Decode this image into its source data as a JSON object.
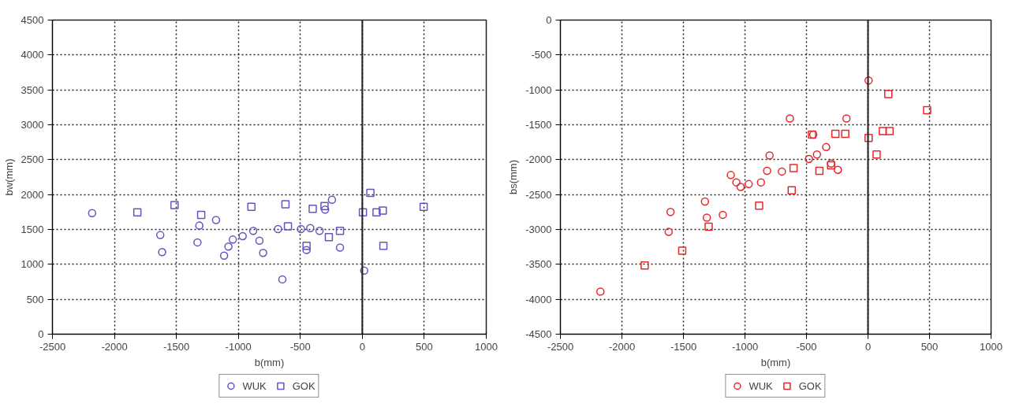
{
  "chart_data": [
    {
      "type": "scatter",
      "xlabel": "b(mm)",
      "ylabel": "bw(mm)",
      "xlim": [
        -2500,
        1000
      ],
      "xticks": [
        -2500,
        -2000,
        -1500,
        -1000,
        -500,
        0,
        500,
        1000
      ],
      "ylim": [
        0,
        4500
      ],
      "yticks": [
        0,
        500,
        1000,
        1500,
        2000,
        2500,
        3000,
        3500,
        4000,
        4500
      ],
      "grid": true,
      "legend": "bottom",
      "ref_lines": [
        {
          "axis": "x",
          "value": 0,
          "line_style": "solid",
          "color": "#222222"
        }
      ],
      "series": [
        {
          "name": "WUK",
          "color": "#6a52c2",
          "marker": "circle",
          "x": [
            -2180,
            -1630,
            -1615,
            -1315,
            -1330,
            -1180,
            -1115,
            -1080,
            -1045,
            -965,
            -880,
            -830,
            -800,
            -680,
            -645,
            -495,
            -420,
            -345,
            -300,
            -245,
            -450,
            -180,
            15
          ],
          "values": [
            1735,
            1420,
            1175,
            1555,
            1315,
            1635,
            1125,
            1255,
            1355,
            1405,
            1480,
            1340,
            1165,
            1505,
            785,
            1505,
            1520,
            1480,
            1785,
            1925,
            1205,
            1240,
            910
          ]
        },
        {
          "name": "GOK",
          "color": "#6a52c2",
          "marker": "square",
          "x": [
            -1815,
            -1515,
            -1300,
            -895,
            -620,
            -600,
            -400,
            -305,
            -270,
            -180,
            -450,
            65,
            5,
            115,
            165,
            170,
            495
          ],
          "values": [
            1745,
            1850,
            1710,
            1825,
            1860,
            1545,
            1795,
            1835,
            1390,
            1480,
            1265,
            2025,
            1745,
            1745,
            1770,
            1265,
            1825
          ]
        }
      ]
    },
    {
      "type": "scatter",
      "xlabel": "b(mm)",
      "ylabel": "bs(mm)",
      "xlim": [
        -2500,
        1000
      ],
      "xticks": [
        -2500,
        -2000,
        -1500,
        -1000,
        -500,
        0,
        500,
        1000
      ],
      "ylim": [
        -4500,
        0
      ],
      "yticks": [
        -4500,
        -4000,
        -3500,
        -3000,
        -2500,
        -2000,
        -1500,
        -1000,
        -500,
        0
      ],
      "grid": true,
      "legend": "bottom",
      "ref_lines": [
        {
          "axis": "x",
          "value": 0,
          "line_style": "solid",
          "color": "#222222"
        }
      ],
      "series": [
        {
          "name": "WUK",
          "color": "#e8262a",
          "marker": "circle",
          "x": [
            -800,
            -820,
            -700,
            -1115,
            -1070,
            -1035,
            -970,
            -870,
            -1325,
            -1605,
            -1310,
            -1180,
            -1620,
            -2175,
            5,
            -635,
            -175,
            -445,
            -340,
            -415,
            -480,
            -300,
            -245
          ],
          "values": [
            -1940,
            -2160,
            -2170,
            -2220,
            -2325,
            -2390,
            -2350,
            -2325,
            -2600,
            -2750,
            -2830,
            -2790,
            -3035,
            -3890,
            -865,
            -1410,
            -1410,
            -1640,
            -1820,
            -1925,
            -1990,
            -2055,
            -2145
          ]
        },
        {
          "name": "GOK",
          "color": "#e8262a",
          "marker": "square",
          "x": [
            -885,
            -1295,
            -1510,
            -1815,
            165,
            480,
            -265,
            -185,
            120,
            175,
            5,
            70,
            -605,
            -395,
            -300,
            -620,
            -455
          ],
          "values": [
            -2660,
            -2960,
            -3305,
            -3515,
            -1060,
            -1290,
            -1630,
            -1630,
            -1590,
            -1590,
            -1690,
            -1925,
            -2120,
            -2160,
            -2080,
            -2440,
            -1640
          ]
        }
      ]
    }
  ]
}
